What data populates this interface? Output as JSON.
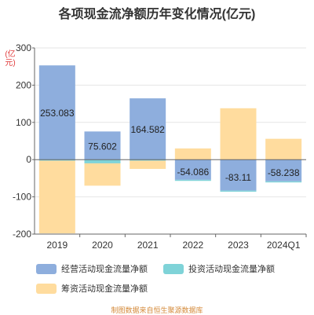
{
  "title": "各项现金流净额历年变化情况(亿元)",
  "unit_label": "(亿元)",
  "source_text": "制图数据来自恒生聚源数据库",
  "colors": {
    "operating": "#8eaedd",
    "investing": "#7fd3d8",
    "financing": "#ffdc9e"
  },
  "chart_data": {
    "type": "bar",
    "categories": [
      "2019",
      "2020",
      "2021",
      "2022",
      "2023",
      "2024Q1"
    ],
    "series": [
      {
        "name": "经营活动现金流量净额",
        "values": [
          253.083,
          75.602,
          164.582,
          -54.086,
          -83.11,
          -58.238
        ],
        "color": "#8eaedd"
      },
      {
        "name": "投资活动现金流量净额",
        "values": [
          -3,
          -10,
          -3,
          -3,
          -3,
          -3
        ],
        "color": "#7fd3d8"
      },
      {
        "name": "筹资活动现金流量净额",
        "values": [
          -195,
          -60,
          -22,
          30,
          138,
          56
        ],
        "color": "#ffdc9e"
      }
    ],
    "data_labels": [
      "253.083",
      "75.602",
      "164.582",
      "-54.086",
      "-83.11",
      "-58.238"
    ],
    "yticks": [
      -200,
      -100,
      0,
      100,
      200,
      300
    ],
    "ylim": [
      -200,
      300
    ],
    "grid": true,
    "legend_position": "bottom"
  }
}
